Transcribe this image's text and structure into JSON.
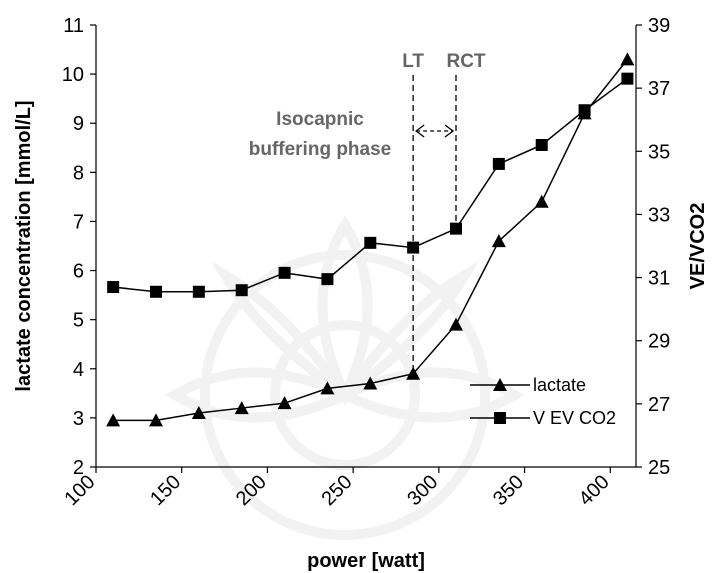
{
  "chart_data": {
    "type": "line",
    "xlabel": "power [watt]",
    "ylabel_left": "lactate concentration [mmol/L]",
    "ylabel_right": "VE/VCO2",
    "xlim": [
      100,
      415
    ],
    "xticks": [
      "100",
      "150",
      "200",
      "250",
      "300",
      "350",
      "400"
    ],
    "ylim_left": [
      2,
      11
    ],
    "yticks_left": [
      "2",
      "3",
      "4",
      "5",
      "6",
      "7",
      "8",
      "9",
      "10",
      "11"
    ],
    "ylim_right": [
      25,
      39
    ],
    "yticks_right": [
      "25",
      "27",
      "29",
      "31",
      "33",
      "35",
      "37",
      "39"
    ],
    "grid": false,
    "legend_position": "bottom-right",
    "series": [
      {
        "name": "lactate",
        "axis": "left",
        "marker": "triangle",
        "x": [
          110,
          135,
          160,
          185,
          210,
          235,
          260,
          285,
          310,
          335,
          360,
          385,
          410
        ],
        "y": [
          2.95,
          2.95,
          3.1,
          3.2,
          3.3,
          3.6,
          3.7,
          3.9,
          4.9,
          6.6,
          7.4,
          9.2,
          10.3
        ]
      },
      {
        "name": "V EV CO2",
        "axis": "right",
        "marker": "square",
        "x": [
          110,
          135,
          160,
          185,
          210,
          235,
          260,
          285,
          310,
          335,
          360,
          385,
          410
        ],
        "y": [
          30.7,
          30.55,
          30.55,
          30.6,
          31.15,
          30.95,
          32.1,
          31.95,
          32.55,
          34.6,
          35.2,
          36.3,
          37.3
        ]
      }
    ],
    "annotations": {
      "lt_label": "LT",
      "lt_x": 285,
      "rct_label": "RCT",
      "rct_x": 310,
      "phase_line1": "Isocapnic",
      "phase_line2": "buffering phase"
    }
  }
}
